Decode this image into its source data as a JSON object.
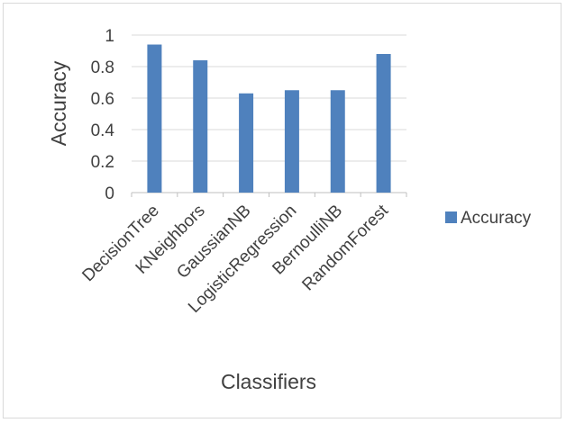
{
  "chart_data": {
    "type": "bar",
    "title": "",
    "xlabel": "Classifiers",
    "ylabel": "Accuracy",
    "categories": [
      "DecisionTree",
      "KNeighbors",
      "GaussianNB",
      "LogisticRegression",
      "BernoulliNB",
      "RandomForest"
    ],
    "series": [
      {
        "name": "Accuracy",
        "values": [
          0.94,
          0.84,
          0.63,
          0.65,
          0.65,
          0.88
        ],
        "color": "#4f81bd"
      }
    ],
    "ylim": [
      0,
      1
    ],
    "yticks": [
      "0",
      "0.2",
      "0.4",
      "0.6",
      "0.8",
      "1"
    ],
    "grid": true,
    "legend_position": "right"
  }
}
